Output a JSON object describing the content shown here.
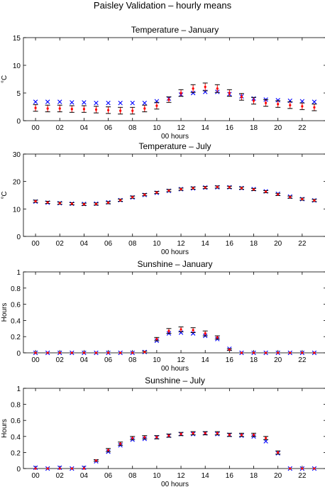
{
  "figure": {
    "title": "Paisley Validation – hourly means"
  },
  "colors": {
    "model": "#0000ff",
    "obs": "#ff0000",
    "errorbar": "#000000"
  },
  "chart_data": [
    {
      "type": "scatter",
      "title": "Temperature – January",
      "xlabel": "00 hours",
      "ylabel": "°C",
      "xlim": [
        -1,
        24
      ],
      "ylim": [
        0,
        15
      ],
      "yticks": [
        0,
        5,
        10,
        15
      ],
      "ytick_labels": [
        "0",
        "5",
        "10",
        "15"
      ],
      "xticks": [
        0,
        2,
        4,
        6,
        8,
        10,
        12,
        14,
        16,
        18,
        20,
        22
      ],
      "xtick_labels": [
        "00",
        "02",
        "04",
        "06",
        "08",
        "10",
        "12",
        "14",
        "16",
        "18",
        "20",
        "22"
      ],
      "x": [
        0,
        1,
        2,
        3,
        4,
        5,
        6,
        7,
        8,
        9,
        10,
        11,
        12,
        13,
        14,
        15,
        16,
        17,
        18,
        19,
        20,
        21,
        22,
        23
      ],
      "series": [
        {
          "marker": "x",
          "color": "#0000ff",
          "values": [
            3.4,
            3.4,
            3.4,
            3.3,
            3.3,
            3.2,
            3.2,
            3.2,
            3.2,
            3.2,
            3.5,
            4.0,
            4.7,
            5.0,
            5.2,
            5.2,
            4.8,
            4.4,
            4.0,
            3.8,
            3.7,
            3.6,
            3.5,
            3.4
          ]
        },
        {
          "marker": "dot",
          "color": "#ff0000",
          "values": [
            2.3,
            2.2,
            2.2,
            2.1,
            2.1,
            2.0,
            1.9,
            1.8,
            1.8,
            2.2,
            2.7,
            3.8,
            5.0,
            5.8,
            6.1,
            5.8,
            5.0,
            4.3,
            3.6,
            3.2,
            3.0,
            2.8,
            2.6,
            2.4
          ],
          "error": [
            0.6,
            0.6,
            0.6,
            0.6,
            0.6,
            0.6,
            0.6,
            0.6,
            0.6,
            0.6,
            0.6,
            0.5,
            0.6,
            0.7,
            0.7,
            0.7,
            0.6,
            0.6,
            0.6,
            0.6,
            0.6,
            0.6,
            0.6,
            0.6
          ]
        }
      ]
    },
    {
      "type": "scatter",
      "title": "Temperature – July",
      "xlabel": "00 hours",
      "ylabel": "°C",
      "xlim": [
        -1,
        24
      ],
      "ylim": [
        0,
        30
      ],
      "yticks": [
        0,
        10,
        20,
        30
      ],
      "ytick_labels": [
        "0",
        "10",
        "20",
        "30"
      ],
      "xticks": [
        0,
        2,
        4,
        6,
        8,
        10,
        12,
        14,
        16,
        18,
        20,
        22
      ],
      "xtick_labels": [
        "00",
        "02",
        "04",
        "06",
        "08",
        "10",
        "12",
        "14",
        "16",
        "18",
        "20",
        "22"
      ],
      "x": [
        0,
        1,
        2,
        3,
        4,
        5,
        6,
        7,
        8,
        9,
        10,
        11,
        12,
        13,
        14,
        15,
        16,
        17,
        18,
        19,
        20,
        21,
        22,
        23
      ],
      "series": [
        {
          "marker": "x",
          "color": "#0000ff",
          "values": [
            12.7,
            12.3,
            12.1,
            11.9,
            11.8,
            11.9,
            12.4,
            13.2,
            14.2,
            15.1,
            15.9,
            16.6,
            17.2,
            17.5,
            17.8,
            17.9,
            17.9,
            17.6,
            17.2,
            16.4,
            15.5,
            14.5,
            13.6,
            13.1
          ]
        },
        {
          "marker": "dot",
          "color": "#ff0000",
          "values": [
            12.8,
            12.4,
            12.1,
            11.9,
            11.7,
            11.8,
            12.3,
            13.2,
            14.3,
            15.2,
            16.0,
            16.7,
            17.2,
            17.6,
            17.8,
            18.0,
            17.9,
            17.6,
            17.1,
            16.3,
            15.3,
            14.3,
            13.6,
            13.1
          ],
          "error": [
            0.4,
            0.4,
            0.4,
            0.4,
            0.4,
            0.4,
            0.4,
            0.4,
            0.4,
            0.4,
            0.4,
            0.4,
            0.4,
            0.4,
            0.4,
            0.4,
            0.4,
            0.4,
            0.4,
            0.4,
            0.4,
            0.4,
            0.4,
            0.4
          ]
        }
      ]
    },
    {
      "type": "scatter",
      "title": "Sunshine – January",
      "xlabel": "00 hours",
      "ylabel": "Hours",
      "xlim": [
        -1,
        24
      ],
      "ylim": [
        0,
        1
      ],
      "yticks": [
        0,
        0.2,
        0.4,
        0.6,
        0.8,
        1
      ],
      "ytick_labels": [
        "0",
        "0.2",
        "0.4",
        "0.6",
        "0.8",
        "1"
      ],
      "xticks": [
        0,
        2,
        4,
        6,
        8,
        10,
        12,
        14,
        16,
        18,
        20,
        22
      ],
      "xtick_labels": [
        "00",
        "02",
        "04",
        "06",
        "08",
        "10",
        "12",
        "14",
        "16",
        "18",
        "20",
        "22"
      ],
      "x": [
        0,
        1,
        2,
        3,
        4,
        5,
        6,
        7,
        8,
        9,
        10,
        11,
        12,
        13,
        14,
        15,
        16,
        17,
        18,
        19,
        20,
        21,
        22,
        23
      ],
      "series": [
        {
          "marker": "x",
          "color": "#0000ff",
          "values": [
            0,
            0,
            0,
            0,
            0,
            0,
            0,
            0,
            0,
            0.01,
            0.15,
            0.24,
            0.25,
            0.24,
            0.21,
            0.17,
            0.05,
            0,
            0,
            0,
            0,
            0,
            0,
            0
          ]
        },
        {
          "marker": "dot",
          "color": "#ff0000",
          "values": [
            0,
            0,
            0,
            0,
            0,
            0,
            0,
            0,
            0,
            0.01,
            0.17,
            0.27,
            0.29,
            0.28,
            0.24,
            0.19,
            0.04,
            0,
            0,
            0,
            0,
            0,
            0,
            0
          ],
          "error": [
            0,
            0,
            0,
            0,
            0,
            0,
            0,
            0,
            0,
            0.01,
            0.02,
            0.03,
            0.03,
            0.03,
            0.03,
            0.02,
            0.01,
            0,
            0,
            0,
            0,
            0,
            0,
            0
          ]
        }
      ]
    },
    {
      "type": "scatter",
      "title": "Sunshine – July",
      "xlabel": "00 hours",
      "ylabel": "Hours",
      "xlim": [
        -1,
        24
      ],
      "ylim": [
        0,
        1
      ],
      "yticks": [
        0,
        0.2,
        0.4,
        0.6,
        0.8,
        1
      ],
      "ytick_labels": [
        "0",
        "0.2",
        "0.4",
        "0.6",
        "0.8",
        "1"
      ],
      "xticks": [
        0,
        2,
        4,
        6,
        8,
        10,
        12,
        14,
        16,
        18,
        20,
        22
      ],
      "xtick_labels": [
        "00",
        "02",
        "04",
        "06",
        "08",
        "10",
        "12",
        "14",
        "16",
        "18",
        "20",
        "22"
      ],
      "x": [
        0,
        1,
        2,
        3,
        4,
        5,
        6,
        7,
        8,
        9,
        10,
        11,
        12,
        13,
        14,
        15,
        16,
        17,
        18,
        19,
        20,
        21,
        22,
        23
      ],
      "series": [
        {
          "marker": "x",
          "color": "#0000ff",
          "values": [
            0.01,
            0,
            0.01,
            0,
            0.01,
            0.09,
            0.21,
            0.29,
            0.36,
            0.37,
            0.39,
            0.41,
            0.43,
            0.43,
            0.44,
            0.43,
            0.42,
            0.41,
            0.4,
            0.34,
            0.19,
            0,
            0,
            0
          ]
        },
        {
          "marker": "dot",
          "color": "#ff0000",
          "values": [
            0,
            0,
            0,
            0,
            0,
            0.1,
            0.23,
            0.31,
            0.38,
            0.39,
            0.39,
            0.41,
            0.43,
            0.44,
            0.44,
            0.44,
            0.42,
            0.42,
            0.42,
            0.38,
            0.2,
            0,
            0,
            0
          ],
          "error": [
            0,
            0,
            0,
            0,
            0,
            0.01,
            0.02,
            0.02,
            0.02,
            0.02,
            0.02,
            0.02,
            0.02,
            0.02,
            0.02,
            0.02,
            0.02,
            0.02,
            0.02,
            0.02,
            0.02,
            0,
            0,
            0
          ]
        }
      ]
    }
  ]
}
